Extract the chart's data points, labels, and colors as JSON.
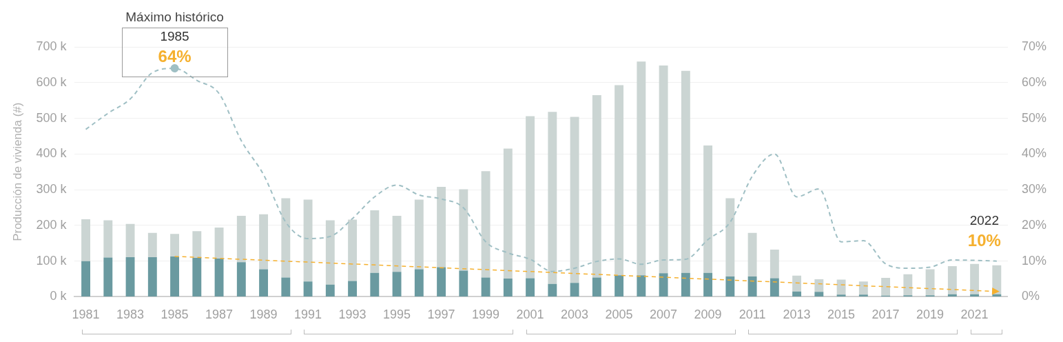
{
  "chart_data": {
    "type": "bar",
    "ylabel": "Producción de vivienda (#)",
    "categories": [
      "1981",
      null,
      "1983",
      null,
      "1985",
      null,
      "1987",
      null,
      "1989",
      null,
      "1991",
      null,
      "1993",
      null,
      "1995",
      null,
      "1997",
      null,
      "1999",
      null,
      "2001",
      null,
      "2003",
      null,
      "2005",
      null,
      "2007",
      null,
      "2009",
      null,
      "2011",
      null,
      "2013",
      null,
      "2015",
      null,
      "2017",
      null,
      "2019",
      null,
      "2021",
      null
    ],
    "series": [
      {
        "color": "#6a9aa0",
        "values": [
          100000,
          110000,
          111000,
          111000,
          113000,
          109000,
          107000,
          97000,
          77000,
          54000,
          43000,
          34000,
          44000,
          67000,
          70000,
          77000,
          83000,
          73000,
          54000,
          51000,
          52000,
          36000,
          39000,
          54000,
          60000,
          60000,
          66000,
          67000,
          67000,
          57000,
          57000,
          52000,
          15000,
          14000,
          6000,
          6000,
          3000,
          4000,
          4000,
          7000,
          7000,
          7000
        ]
      },
      {
        "color": "#cbd5d3",
        "values": [
          117000,
          104000,
          93000,
          68000,
          63000,
          75000,
          87000,
          130000,
          154000,
          222000,
          229000,
          180000,
          172000,
          175000,
          157000,
          195000,
          225000,
          228000,
          298000,
          364000,
          454000,
          482000,
          465000,
          511000,
          533000,
          599000,
          582000,
          566000,
          357000,
          219000,
          122000,
          80000,
          44000,
          35000,
          42000,
          37000,
          50000,
          59000,
          73000,
          79000,
          85000,
          81000
        ]
      },
      {
        "type": "line",
        "axis": "y2",
        "color": "#9fbfc4",
        "line_style": "dashed",
        "values": [
          46.9,
          51.4,
          55.4,
          62.8,
          64,
          60.6,
          56.9,
          43.7,
          34.2,
          20.9,
          16.3,
          16.9,
          21.9,
          28,
          31.3,
          28.5,
          27.4,
          24.9,
          15.4,
          12.3,
          10.5,
          7.1,
          8,
          9.9,
          10.6,
          9.1,
          10.3,
          10.5,
          16,
          20.9,
          33.8,
          40,
          28,
          30.2,
          15.4,
          15.7,
          9.2,
          8,
          8.3,
          10.3,
          10.2,
          10
        ]
      },
      {
        "type": "line",
        "color": "#f5b02e",
        "line_style": "dashed",
        "values": [
          null,
          null,
          null,
          null,
          113000,
          null,
          null,
          null,
          null,
          null,
          null,
          null,
          null,
          null,
          null,
          null,
          null,
          null,
          null,
          null,
          null,
          null,
          null,
          null,
          null,
          null,
          null,
          null,
          null,
          null,
          null,
          null,
          null,
          null,
          null,
          null,
          null,
          null,
          null,
          null,
          null,
          15000
        ]
      }
    ],
    "ylim": [
      0,
      700000
    ],
    "yticks": [
      {
        "value": 0,
        "label": "0 k"
      },
      {
        "value": 100000,
        "label": "100 k"
      },
      {
        "value": 200000,
        "label": "200 k"
      },
      {
        "value": 300000,
        "label": "300 k"
      },
      {
        "value": 400000,
        "label": "400 k"
      },
      {
        "value": 500000,
        "label": "500 k"
      },
      {
        "value": 600000,
        "label": "600 k"
      },
      {
        "value": 700000,
        "label": "700 k"
      }
    ],
    "y2lim": [
      0,
      70
    ],
    "y2ticks": [
      {
        "value": 0,
        "label": "0%"
      },
      {
        "value": 10,
        "label": "10%"
      },
      {
        "value": 20,
        "label": "20%"
      },
      {
        "value": 30,
        "label": "30%"
      },
      {
        "value": 40,
        "label": "40%"
      },
      {
        "value": 50,
        "label": "50%"
      },
      {
        "value": 60,
        "label": "60%"
      },
      {
        "value": 70,
        "label": "70%"
      }
    ],
    "grid": "y",
    "stacked": true,
    "annotations": [
      "Máximo histórico",
      "1985",
      "64%",
      "2022",
      "10%"
    ]
  }
}
